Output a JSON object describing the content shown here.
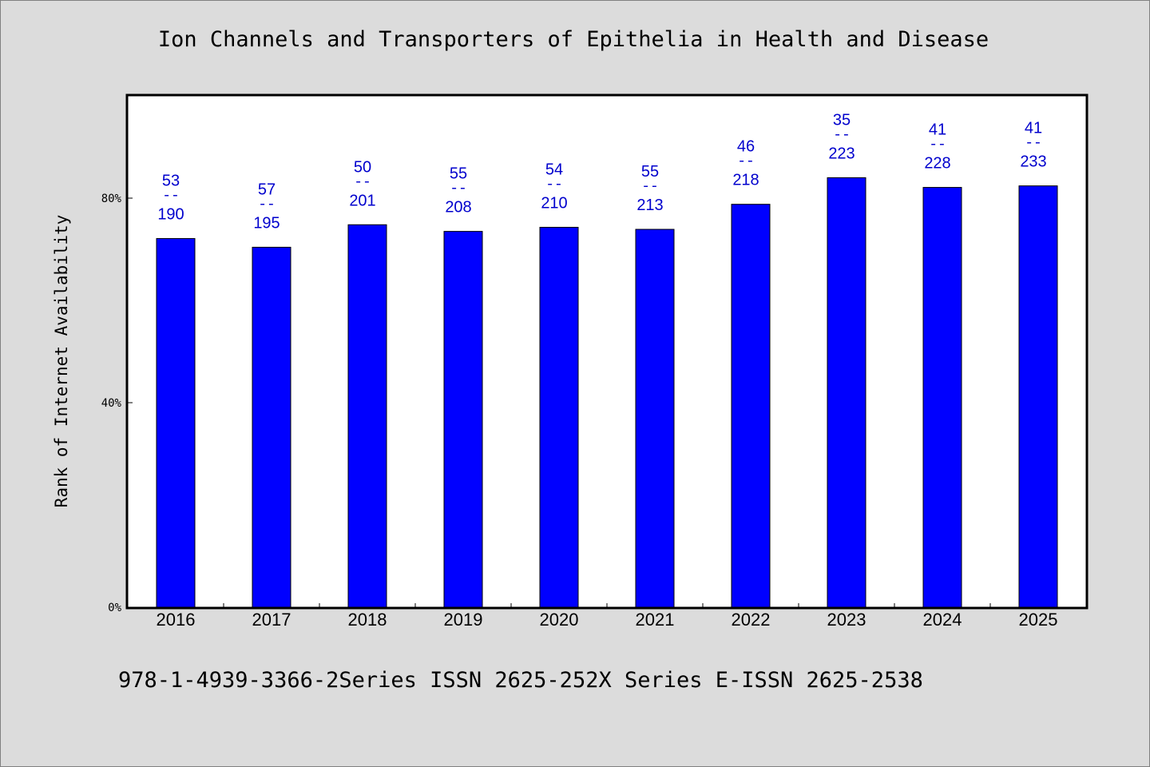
{
  "chart_data": {
    "type": "bar",
    "title": "Ion Channels and Transporters of Epithelia in Health and Disease",
    "ylabel": "Rank of Internet Availability",
    "xlabel": "",
    "categories": [
      "2016",
      "2017",
      "2018",
      "2019",
      "2020",
      "2021",
      "2022",
      "2023",
      "2024",
      "2025"
    ],
    "values": [
      72.1,
      70.4,
      74.8,
      73.5,
      74.3,
      73.9,
      78.8,
      84.0,
      82.1,
      82.4
    ],
    "ranks": [
      "53",
      "57",
      "50",
      "55",
      "54",
      "55",
      "46",
      "35",
      "41",
      "41"
    ],
    "totals": [
      "190",
      "195",
      "201",
      "208",
      "210",
      "213",
      "218",
      "223",
      "228",
      "233"
    ],
    "separator": "--",
    "ylim": [
      0,
      100
    ],
    "yticks": [
      0,
      40,
      80
    ],
    "ytick_labels": [
      "0%",
      "40%",
      "80%"
    ],
    "bar_color": "#0000ff",
    "label_color": "#0000cd",
    "grid": false,
    "legend": "none"
  },
  "footnote": "978-1-4939-3366-2Series ISSN 2625-252X Series E-ISSN 2625-2538"
}
